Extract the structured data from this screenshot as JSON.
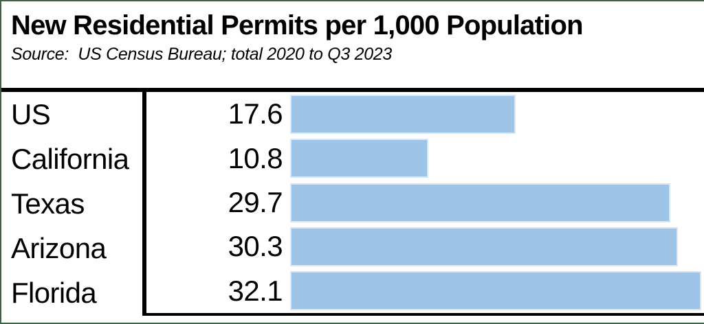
{
  "header": {
    "title": "New Residential Permits per 1,000 Population",
    "source_line": "Source:  US Census Bureau; total 2020 to Q3 2023"
  },
  "chart_data": {
    "type": "bar",
    "orientation": "horizontal",
    "title": "New Residential Permits per 1,000 Population",
    "subtitle": "Source:  US Census Bureau; total 2020 to Q3 2023",
    "categories": [
      "US",
      "California",
      "Texas",
      "Arizona",
      "Florida"
    ],
    "values": [
      17.6,
      10.8,
      29.7,
      30.3,
      32.1
    ],
    "value_labels": [
      "17.6",
      "10.8",
      "29.7",
      "30.3",
      "32.1"
    ],
    "xlabel": "",
    "ylabel": "",
    "xlim": [
      0,
      32.3
    ],
    "grid": false,
    "legend": false,
    "axis_lines": "black header rule, black category divider, black bottom rule"
  },
  "colors": {
    "frame_border": "#3d6347",
    "rule": "#000000",
    "bar": "#9DC3E6",
    "bar_border": "#D6E6F4",
    "text": "#000000",
    "background": "#ffffff"
  }
}
